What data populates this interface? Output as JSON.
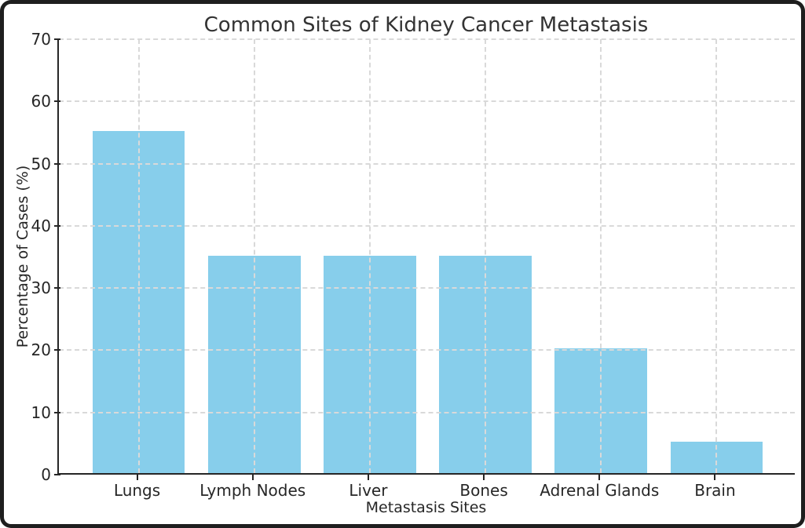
{
  "chart_data": {
    "type": "bar",
    "title": "Common Sites of Kidney Cancer Metastasis",
    "xlabel": "Metastasis Sites",
    "ylabel": "Percentage of Cases (%)",
    "categories": [
      "Lungs",
      "Lymph Nodes",
      "Liver",
      "Bones",
      "Adrenal Glands",
      "Brain"
    ],
    "values": [
      55,
      35,
      35,
      35,
      20,
      5
    ],
    "ylim": [
      0,
      70
    ],
    "yticks": [
      0,
      10,
      20,
      30,
      40,
      50,
      60,
      70
    ],
    "grid": "dashed, horizontal and vertical, drawn over bars",
    "legend": "none",
    "bar_color": "#87CEEB",
    "grid_color": "#d9d9d9",
    "axis_color": "#262626",
    "title_color": "#333333",
    "plot_background": "#ffffff",
    "frame_color": "#1e1e1e"
  }
}
